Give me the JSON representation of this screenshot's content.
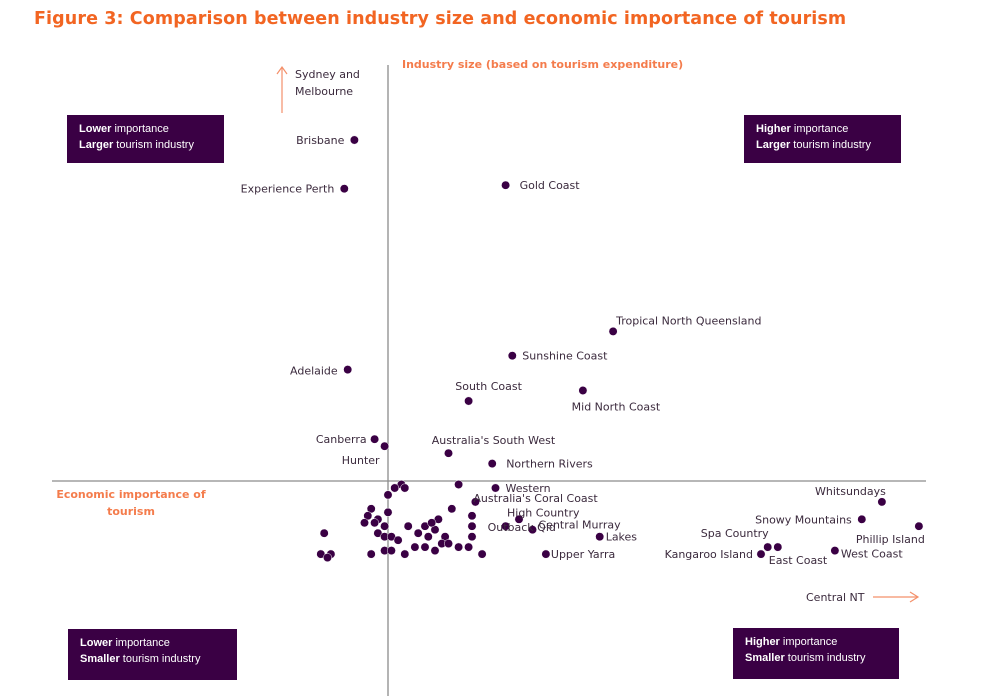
{
  "figure": {
    "title": "Figure 3: Comparison between industry size and economic importance of tourism"
  },
  "quadrants": {
    "top_left": {
      "bold1": "Lower",
      "rest1": " importance",
      "bold2": "Larger",
      "rest2": " tourism industry"
    },
    "top_right": {
      "bold1": "Higher",
      "rest1": " importance",
      "bold2": "Larger",
      "rest2": " tourism industry"
    },
    "bottom_left": {
      "bold1": "Lower",
      "rest1": " importance",
      "bold2": "Smaller",
      "rest2": " tourism industry"
    },
    "bottom_right": {
      "bold1": "Higher",
      "rest1": " importance",
      "bold2": "Smaller",
      "rest2": " tourism industry"
    }
  },
  "colors": {
    "title": "#f26522",
    "axis_title": "#f47c4c",
    "point": "#3a0044",
    "quadrant_box": "#3a0044",
    "axis_line": "#8c8c8c",
    "arrow": "#f4906a"
  },
  "chart_data": {
    "type": "scatter",
    "title": "Figure 3: Comparison between industry size and economic importance of tourism",
    "xlabel": "Economic importance of tourism",
    "ylabel": "Industry size (based on tourism expenditure)",
    "xlim": [
      -10,
      16
    ],
    "ylim": [
      -6,
      12
    ],
    "grid": false,
    "axes_cross_at": [
      0,
      0
    ],
    "offscale_annotations": [
      {
        "label": "Sydney and Melbourne",
        "direction": "up",
        "note": "beyond top of y-axis"
      },
      {
        "label": "Central NT",
        "direction": "right",
        "note": "beyond right end of x-axis"
      }
    ],
    "labeled_points": [
      {
        "label": "Brisbane",
        "x": -1.0,
        "y": 9.8
      },
      {
        "label": "Experience Perth",
        "x": -1.3,
        "y": 8.4
      },
      {
        "label": "Gold Coast",
        "x": 3.5,
        "y": 8.5
      },
      {
        "label": "Tropical North Queensland",
        "x": 6.7,
        "y": 4.3
      },
      {
        "label": "Sunshine Coast",
        "x": 3.7,
        "y": 3.6
      },
      {
        "label": "Adelaide",
        "x": -1.2,
        "y": 3.2
      },
      {
        "label": "South Coast",
        "x": 2.4,
        "y": 2.3
      },
      {
        "label": "Mid North Coast",
        "x": 5.8,
        "y": 2.6
      },
      {
        "label": "Canberra",
        "x": -0.4,
        "y": 1.2
      },
      {
        "label": "Hunter",
        "x": -0.1,
        "y": 1.0
      },
      {
        "label": "Australia's South West",
        "x": 1.8,
        "y": 0.8
      },
      {
        "label": "Northern Rivers",
        "x": 3.1,
        "y": 0.5
      },
      {
        "label": "Western",
        "x": 3.2,
        "y": -0.2
      },
      {
        "label": "Australia's Coral Coast",
        "x": 2.6,
        "y": -0.6
      },
      {
        "label": "High Country",
        "x": 3.9,
        "y": -1.1
      },
      {
        "label": "Central Murray",
        "x": 4.3,
        "y": -1.4
      },
      {
        "label": "Outback Qld",
        "x": 3.5,
        "y": -1.3
      },
      {
        "label": "Lakes",
        "x": 6.3,
        "y": -1.6
      },
      {
        "label": "Upper Yarra",
        "x": 4.7,
        "y": -2.1
      },
      {
        "label": "Whitsundays",
        "x": 14.7,
        "y": -0.6
      },
      {
        "label": "Snowy Mountains",
        "x": 14.1,
        "y": -1.1
      },
      {
        "label": "Phillip Island",
        "x": 15.8,
        "y": -1.3
      },
      {
        "label": "Spa Country",
        "x": 11.3,
        "y": -1.9
      },
      {
        "label": "East Coast",
        "x": 11.6,
        "y": -1.9
      },
      {
        "label": "Kangaroo Island",
        "x": 11.1,
        "y": -2.1
      },
      {
        "label": "West Coast",
        "x": 13.3,
        "y": -2.0
      }
    ],
    "unlabeled_points": [
      {
        "x": 0.4,
        "y": -0.1
      },
      {
        "x": 0.5,
        "y": -0.2
      },
      {
        "x": 0.2,
        "y": -0.2
      },
      {
        "x": 0.0,
        "y": -0.4
      },
      {
        "x": 2.1,
        "y": -0.1
      },
      {
        "x": -0.5,
        "y": -0.8
      },
      {
        "x": -0.6,
        "y": -1.0
      },
      {
        "x": 0.0,
        "y": -0.9
      },
      {
        "x": -0.3,
        "y": -1.1
      },
      {
        "x": -0.7,
        "y": -1.2
      },
      {
        "x": -0.4,
        "y": -1.2
      },
      {
        "x": -0.1,
        "y": -1.3
      },
      {
        "x": -0.3,
        "y": -1.5
      },
      {
        "x": -0.1,
        "y": -1.6
      },
      {
        "x": 0.1,
        "y": -1.6
      },
      {
        "x": 0.3,
        "y": -1.7
      },
      {
        "x": -1.9,
        "y": -1.5
      },
      {
        "x": -2.0,
        "y": -2.1
      },
      {
        "x": -1.7,
        "y": -2.1
      },
      {
        "x": -1.8,
        "y": -2.2
      },
      {
        "x": -0.5,
        "y": -2.1
      },
      {
        "x": -0.1,
        "y": -2.0
      },
      {
        "x": 0.1,
        "y": -2.0
      },
      {
        "x": 0.5,
        "y": -2.1
      },
      {
        "x": 0.6,
        "y": -1.3
      },
      {
        "x": 0.9,
        "y": -1.5
      },
      {
        "x": 1.1,
        "y": -1.3
      },
      {
        "x": 1.2,
        "y": -1.6
      },
      {
        "x": 0.8,
        "y": -1.9
      },
      {
        "x": 1.1,
        "y": -1.9
      },
      {
        "x": 1.4,
        "y": -2.0
      },
      {
        "x": 1.5,
        "y": -1.1
      },
      {
        "x": 1.4,
        "y": -1.4
      },
      {
        "x": 1.7,
        "y": -1.6
      },
      {
        "x": 1.6,
        "y": -1.8
      },
      {
        "x": 1.8,
        "y": -1.8
      },
      {
        "x": 2.1,
        "y": -1.9
      },
      {
        "x": 1.9,
        "y": -0.8
      },
      {
        "x": 2.5,
        "y": -1.0
      },
      {
        "x": 2.5,
        "y": -1.3
      },
      {
        "x": 2.5,
        "y": -1.6
      },
      {
        "x": 2.4,
        "y": -1.9
      },
      {
        "x": 2.8,
        "y": -2.1
      },
      {
        "x": 1.3,
        "y": -1.2
      }
    ]
  }
}
